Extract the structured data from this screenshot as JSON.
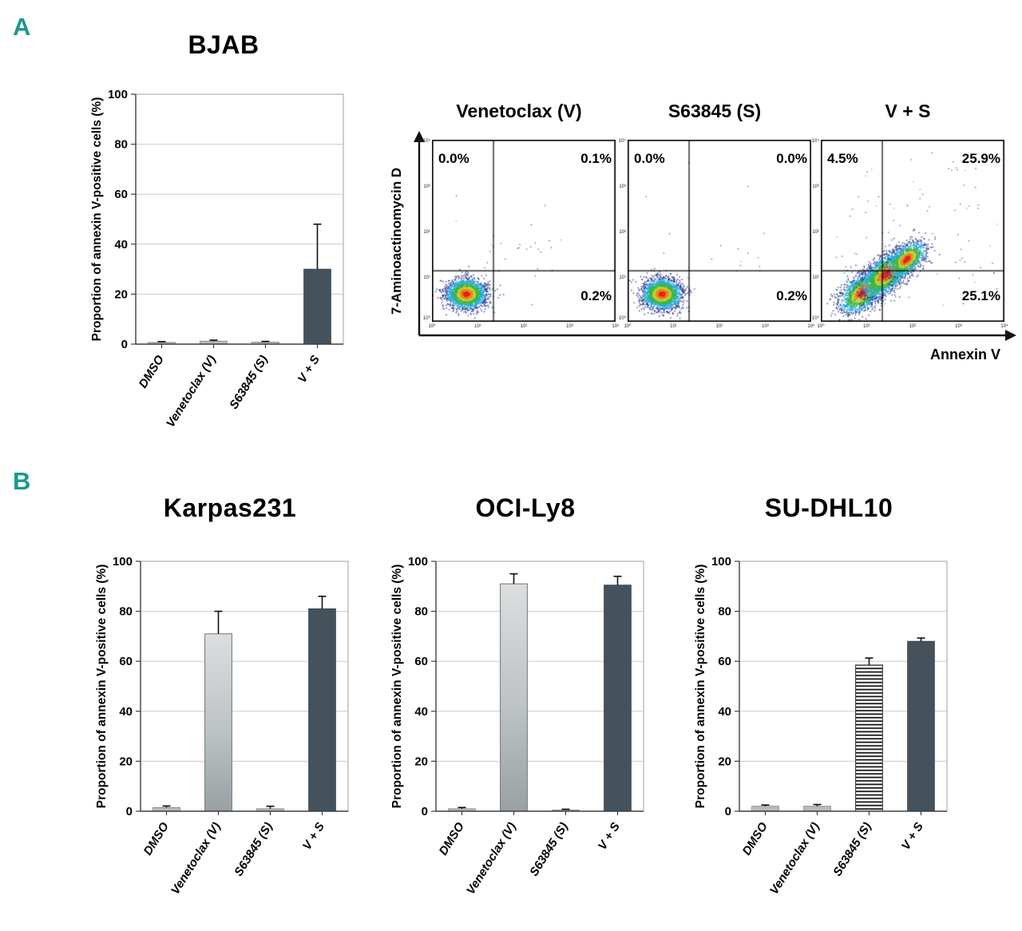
{
  "figure": {
    "panelA": {
      "label": "A"
    },
    "panelB": {
      "label": "B"
    }
  },
  "palette": {
    "accent": "#18998f",
    "bar_gray": "#b8bbbc",
    "bar_dark": "#46525b",
    "bar_gradient_top": "#dcdedf",
    "bar_gradient_bottom": "#9aa0a3",
    "gridline": "#c7ccd0",
    "frame": "#9aa0a4",
    "axis": "#3a3f44",
    "error_bar": "#101010"
  },
  "chart_data": [
    {
      "id": "bjab",
      "type": "bar",
      "title": "BJAB",
      "ylabel": "Proportion of annexin V-positive cells (%)",
      "xlabel": "",
      "categories": [
        "DMSO",
        "Venetoclax (V)",
        "S63845 (S)",
        "V + S"
      ],
      "values": [
        0.7,
        1.2,
        0.8,
        30
      ],
      "errors": [
        0.3,
        0.4,
        0.3,
        18
      ],
      "ylim": [
        0,
        100
      ],
      "yticks": [
        0,
        20,
        40,
        60,
        80,
        100
      ],
      "bar_styles": [
        "gray",
        "gray",
        "gray",
        "dark"
      ],
      "grid": true,
      "legend": "none"
    },
    {
      "id": "karpas231",
      "type": "bar",
      "title": "Karpas231",
      "ylabel": "Proportion of annexin V-positive cells (%)",
      "xlabel": "",
      "categories": [
        "DMSO",
        "Venetoclax (V)",
        "S63845 (S)",
        "V + S"
      ],
      "values": [
        1.5,
        71,
        1,
        81
      ],
      "errors": [
        0.6,
        9,
        1,
        5
      ],
      "ylim": [
        0,
        100
      ],
      "yticks": [
        0,
        20,
        40,
        60,
        80,
        100
      ],
      "bar_styles": [
        "gray",
        "gradient",
        "gray",
        "dark"
      ],
      "grid": true,
      "legend": "none"
    },
    {
      "id": "oci_ly8",
      "type": "bar",
      "title": "OCI-Ly8",
      "ylabel": "Proportion of annexin V-positive cells (%)",
      "xlabel": "",
      "categories": [
        "DMSO",
        "Venetoclax (V)",
        "S63845 (S)",
        "V + S"
      ],
      "values": [
        1,
        91,
        0.5,
        90.5
      ],
      "errors": [
        0.5,
        4,
        0.3,
        3.5
      ],
      "ylim": [
        0,
        100
      ],
      "yticks": [
        0,
        20,
        40,
        60,
        80,
        100
      ],
      "bar_styles": [
        "gray",
        "gradient",
        "gray",
        "dark"
      ],
      "grid": true,
      "legend": "none"
    },
    {
      "id": "su_dhl10",
      "type": "bar",
      "title": "SU-DHL10",
      "ylabel": "Proportion of annexin V-positive cells (%)",
      "xlabel": "",
      "categories": [
        "DMSO",
        "Venetoclax (V)",
        "S63845 (S)",
        "V + S"
      ],
      "values": [
        2,
        2,
        58.5,
        68
      ],
      "errors": [
        0.5,
        0.7,
        2.8,
        1.3
      ],
      "ylim": [
        0,
        100
      ],
      "yticks": [
        0,
        20,
        40,
        60,
        80,
        100
      ],
      "bar_styles": [
        "gray",
        "gray",
        "stripes",
        "dark"
      ],
      "grid": true,
      "legend": "none"
    },
    {
      "id": "flow_cytometry",
      "type": "scatter",
      "subtype": "flow-cytometry-density",
      "xlabel": "Annexin V",
      "ylabel": "7-Aminoactinomycin D",
      "log_ticks": [
        "10⁰",
        "10¹",
        "10²",
        "10³",
        "10⁴"
      ],
      "plots": [
        {
          "title": "Venetoclax (V)",
          "quadrants": {
            "top_left": "0.0%",
            "top_right": "0.1%",
            "bottom_right": "0.2%"
          }
        },
        {
          "title": "S63845 (S)",
          "quadrants": {
            "top_left": "0.0%",
            "top_right": "0.0%",
            "bottom_right": "0.2%"
          }
        },
        {
          "title": "V + S",
          "quadrants": {
            "top_left": "4.5%",
            "top_right": "25.9%",
            "bottom_right": "25.1%"
          }
        }
      ]
    }
  ]
}
